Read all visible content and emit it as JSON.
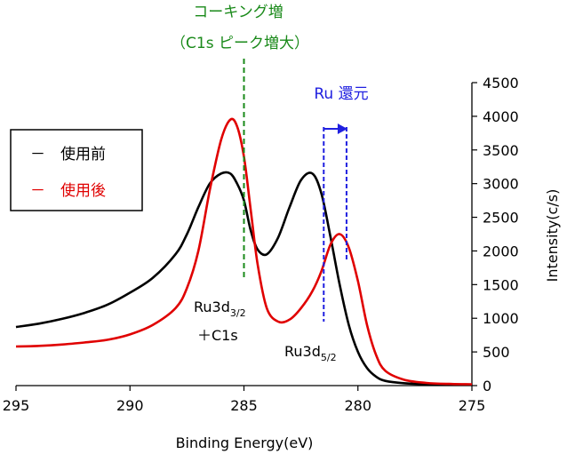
{
  "chart_data": {
    "type": "line",
    "xlabel": "Binding Energy(eV)",
    "ylabel": "Intensity(c/s)",
    "xlim": [
      295,
      275
    ],
    "ylim": [
      0,
      4500
    ],
    "x_reversed": true,
    "x_ticks": [
      "295",
      "290",
      "285",
      "280",
      "275"
    ],
    "y_ticks": [
      "0",
      "500",
      "1000",
      "1500",
      "2000",
      "2500",
      "3000",
      "3500",
      "4000",
      "4500"
    ],
    "axis_side": "right",
    "grid": false,
    "legend_position": "top-left",
    "series": [
      {
        "name": "使用前",
        "legend_marker": "－",
        "color": "#000000",
        "x": [
          295,
          294,
          293,
          292,
          291,
          290,
          289,
          288,
          287.5,
          287,
          286.5,
          286,
          285.6,
          285.3,
          285,
          284.7,
          284.4,
          284,
          283.5,
          283,
          282.5,
          282,
          281.6,
          281.2,
          280.8,
          280.4,
          280,
          279.6,
          279.2,
          278.8,
          278,
          277,
          276,
          275
        ],
        "y": [
          870,
          920,
          990,
          1080,
          1200,
          1380,
          1600,
          1950,
          2250,
          2650,
          3000,
          3150,
          3150,
          3000,
          2750,
          2300,
          2020,
          1950,
          2200,
          2650,
          3050,
          3150,
          2850,
          2200,
          1500,
          900,
          500,
          260,
          130,
          70,
          35,
          20,
          15,
          12
        ]
      },
      {
        "name": "使用後",
        "legend_marker": "－",
        "color": "#e00000",
        "x": [
          295,
          294,
          293,
          292,
          291,
          290,
          289,
          288,
          287.5,
          287,
          286.5,
          286,
          285.6,
          285.3,
          285,
          284.7,
          284.4,
          284,
          283.5,
          283,
          282.5,
          282,
          281.6,
          281.2,
          280.8,
          280.4,
          280,
          279.6,
          279.2,
          278.8,
          278,
          277,
          276,
          275
        ],
        "y": [
          580,
          590,
          610,
          640,
          680,
          760,
          900,
          1150,
          1450,
          2000,
          2900,
          3650,
          3950,
          3850,
          3400,
          2600,
          1800,
          1150,
          950,
          980,
          1150,
          1400,
          1700,
          2100,
          2250,
          2050,
          1550,
          900,
          450,
          220,
          90,
          40,
          25,
          20
        ]
      }
    ],
    "annotations": {
      "coking_line1": "コーキング増",
      "coking_line2": "（C1s ピーク増大）",
      "coking_x": 285,
      "ru_reduction": "Ru 還元",
      "ru_from_x": 281.5,
      "ru_to_x": 280.5,
      "peak1_line1": "Ru3d",
      "peak1_sub": "3/2",
      "peak1_line2": "＋C1s",
      "peak2_main": "Ru3d",
      "peak2_sub": "5/2"
    },
    "colors": {
      "coking_annotation": "#1a8a1a",
      "ru_annotation": "#2020e0"
    }
  }
}
